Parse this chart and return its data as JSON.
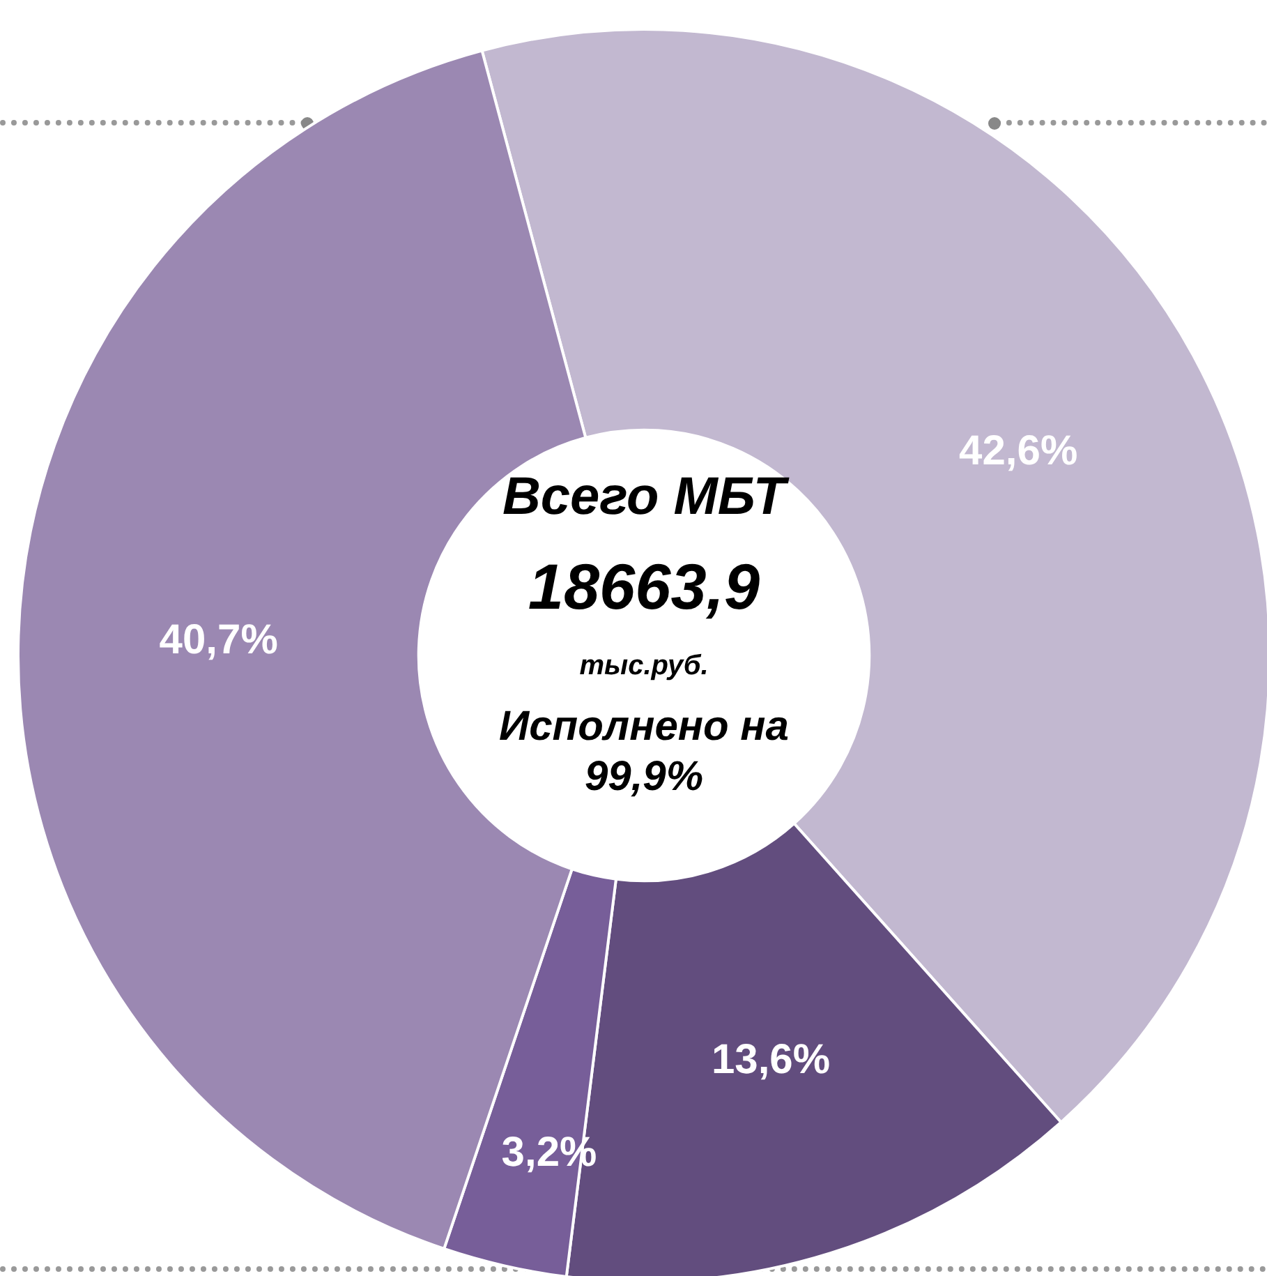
{
  "chart_data": {
    "type": "donut",
    "title": "Всего МБТ",
    "subtitle": "18663,9",
    "annotations": [
      "тыс.руб.",
      "Исполнено на 99,9%"
    ],
    "categories": [
      null,
      null,
      null,
      null
    ],
    "values": [
      42.6,
      13.6,
      3.2,
      40.7
    ],
    "value_labels": [
      "42,6%",
      "13,6%",
      "3,2%",
      "40,7%"
    ],
    "colors": [
      "#c2b8d0",
      "#624d7e",
      "#775e99",
      "#9b88b2"
    ],
    "legend": false
  }
}
